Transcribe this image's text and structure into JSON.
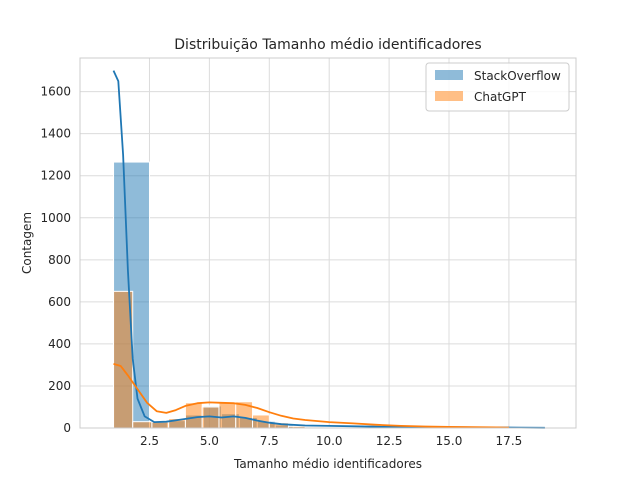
{
  "chart_data": {
    "type": "bar",
    "title": "Distribuição Tamanho médio identificadores",
    "xlabel": "Tamanho médio identificadores",
    "ylabel": "Contagem",
    "xlim": [
      -0.4,
      20.3
    ],
    "ylim": [
      0,
      1760
    ],
    "xticks": [
      2.5,
      5.0,
      7.5,
      10.0,
      12.5,
      15.0,
      17.5
    ],
    "xtick_labels": [
      "2.5",
      "5.0",
      "7.5",
      "10.0",
      "12.5",
      "15.0",
      "17.5"
    ],
    "yticks": [
      0,
      200,
      400,
      600,
      800,
      1000,
      1200,
      1400,
      1600
    ],
    "ytick_labels": [
      "0",
      "200",
      "400",
      "600",
      "800",
      "1000",
      "1200",
      "1400",
      "1600"
    ],
    "grid": true,
    "legend_position": "top-right",
    "series": [
      {
        "name": "StackOverflow",
        "color": "#1f77b4",
        "bins": [
          {
            "x0": 1.0,
            "x1": 2.5,
            "count": 1265
          },
          {
            "x0": 2.5,
            "x1": 3.25,
            "count": 28
          },
          {
            "x0": 3.25,
            "x1": 4.0,
            "count": 35
          },
          {
            "x0": 4.0,
            "x1": 4.75,
            "count": 62
          },
          {
            "x0": 4.75,
            "x1": 5.5,
            "count": 105
          },
          {
            "x0": 5.5,
            "x1": 6.25,
            "count": 68
          },
          {
            "x0": 6.25,
            "x1": 7.0,
            "count": 50
          },
          {
            "x0": 7.0,
            "x1": 7.75,
            "count": 32
          },
          {
            "x0": 7.75,
            "x1": 8.5,
            "count": 14
          },
          {
            "x0": 8.5,
            "x1": 9.25,
            "count": 6
          },
          {
            "x0": 9.25,
            "x1": 10.0,
            "count": 4
          },
          {
            "x0": 10.0,
            "x1": 10.75,
            "count": 3
          }
        ],
        "kde": [
          [
            1.0,
            1700
          ],
          [
            1.2,
            1650
          ],
          [
            1.4,
            1300
          ],
          [
            1.6,
            750
          ],
          [
            1.8,
            330
          ],
          [
            2.0,
            140
          ],
          [
            2.3,
            55
          ],
          [
            2.7,
            28
          ],
          [
            3.2,
            30
          ],
          [
            3.8,
            40
          ],
          [
            4.5,
            52
          ],
          [
            5.0,
            55
          ],
          [
            5.5,
            50
          ],
          [
            6.0,
            55
          ],
          [
            6.5,
            48
          ],
          [
            7.0,
            35
          ],
          [
            7.5,
            25
          ],
          [
            8.0,
            18
          ],
          [
            9.0,
            12
          ],
          [
            10.0,
            10
          ],
          [
            12.0,
            6
          ],
          [
            14.0,
            4
          ],
          [
            16.0,
            3
          ],
          [
            18.0,
            2
          ],
          [
            19.0,
            1
          ]
        ]
      },
      {
        "name": "ChatGPT",
        "color": "#ff7f0e",
        "bins": [
          {
            "x0": 1.0,
            "x1": 1.8,
            "count": 650
          },
          {
            "x0": 1.8,
            "x1": 2.6,
            "count": 30
          },
          {
            "x0": 2.6,
            "x1": 3.3,
            "count": 28
          },
          {
            "x0": 3.3,
            "x1": 4.0,
            "count": 45
          },
          {
            "x0": 4.0,
            "x1": 4.7,
            "count": 120
          },
          {
            "x0": 4.7,
            "x1": 5.4,
            "count": 100
          },
          {
            "x0": 5.4,
            "x1": 6.1,
            "count": 120
          },
          {
            "x0": 6.1,
            "x1": 6.8,
            "count": 125
          },
          {
            "x0": 6.8,
            "x1": 7.5,
            "count": 62
          },
          {
            "x0": 7.5,
            "x1": 8.3,
            "count": 25
          },
          {
            "x0": 8.3,
            "x1": 9.0,
            "count": 8
          },
          {
            "x0": 9.0,
            "x1": 9.8,
            "count": 5
          }
        ],
        "kde": [
          [
            1.0,
            305
          ],
          [
            1.3,
            295
          ],
          [
            1.6,
            250
          ],
          [
            2.0,
            185
          ],
          [
            2.4,
            120
          ],
          [
            2.8,
            80
          ],
          [
            3.2,
            72
          ],
          [
            3.6,
            85
          ],
          [
            4.0,
            105
          ],
          [
            4.5,
            118
          ],
          [
            5.0,
            122
          ],
          [
            5.5,
            120
          ],
          [
            6.0,
            118
          ],
          [
            6.5,
            110
          ],
          [
            7.0,
            95
          ],
          [
            7.5,
            75
          ],
          [
            8.0,
            58
          ],
          [
            8.5,
            45
          ],
          [
            9.0,
            38
          ],
          [
            10.0,
            28
          ],
          [
            11.0,
            22
          ],
          [
            12.0,
            15
          ],
          [
            13.0,
            10
          ],
          [
            14.0,
            7
          ],
          [
            15.0,
            5
          ],
          [
            16.0,
            4
          ],
          [
            17.0,
            3
          ],
          [
            17.5,
            2
          ]
        ]
      }
    ]
  }
}
